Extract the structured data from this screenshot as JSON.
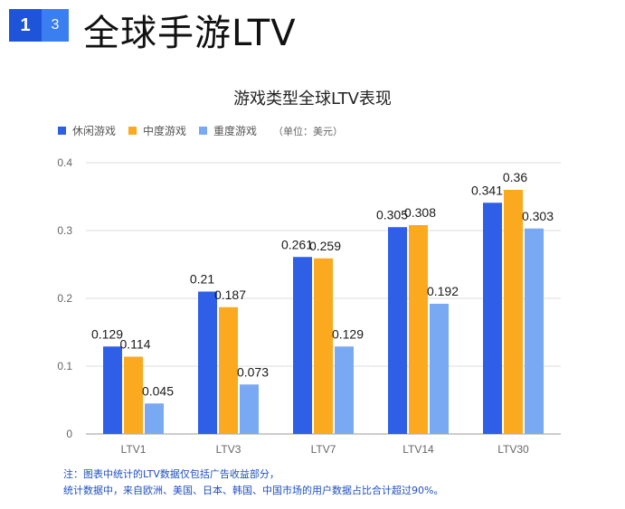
{
  "header": {
    "badge_primary": "1",
    "badge_secondary": "3",
    "title": "全球手游LTV"
  },
  "colors": {
    "badge_primary": "#1e55d8",
    "badge_secondary": "#3b7ef0",
    "note_text": "#1f4fc1"
  },
  "chart_data": {
    "type": "bar",
    "title": "游戏类型全球LTV表现",
    "unit_note": "（单位：美元）",
    "categories": [
      "LTV1",
      "LTV3",
      "LTV7",
      "LTV14",
      "LTV30"
    ],
    "series": [
      {
        "name": "休闲游戏",
        "color": "#2f5fe6",
        "values": [
          0.129,
          0.21,
          0.261,
          0.305,
          0.341
        ],
        "labels": [
          "0.129",
          "0.21",
          "0.261",
          "0.305",
          "0.341"
        ]
      },
      {
        "name": "中度游戏",
        "color": "#fba91e",
        "values": [
          0.114,
          0.187,
          0.259,
          0.308,
          0.36
        ],
        "labels": [
          "0.114",
          "0.187",
          "0.259",
          "0.308",
          "0.36"
        ]
      },
      {
        "name": "重度游戏",
        "color": "#7aa9f3",
        "values": [
          0.045,
          0.073,
          0.129,
          0.192,
          0.303
        ],
        "labels": [
          "0.045",
          "0.073",
          "0.129",
          "0.192",
          "0.303"
        ]
      }
    ],
    "ylim": [
      0,
      0.4
    ],
    "yticks": [
      "0",
      "0.1",
      "0.2",
      "0.3",
      "0.4"
    ],
    "grid": true,
    "legend_position": "top-left"
  },
  "notes": [
    "注：图表中统计的LTV数据仅包括广告收益部分，",
    "统计数据中，来自欧洲、美国、日本、韩国、中国市场的用户数据占比合计超过90%。"
  ]
}
